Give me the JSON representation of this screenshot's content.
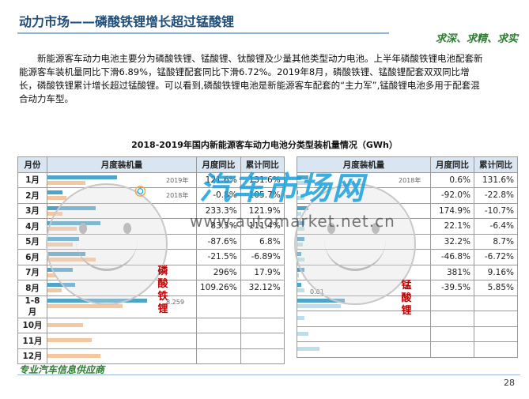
{
  "header": {
    "title": "动力市场——磷酸铁锂增长超过锰酸锂",
    "slogan": "求深、求精、求实"
  },
  "intro": "新能源客车动力电池主要分为磷酸铁锂、锰酸锂、钛酸锂及少量其他类型动力电池。上半年磷酸铁锂电池配套新能源客车装机量同比下滑6.89%，锰酸锂配套同比下滑6.72%。2019年8月，磷酸铁锂、锰酸锂配套双双同比增长，磷酸铁锂累计增长超过锰酸锂。可以看到,磷酸铁锂电池是新能源客车配套的“主力军”,锰酸锂电池多用于配套混合动力车型。",
  "table": {
    "title": "2018-2019年国内新能源客车动力电池分类型装机量情况（GWh）",
    "headers": [
      "月份",
      "月度装机量",
      "月度同比",
      "累计同比",
      "月度装机量",
      "月度同比",
      "累计同比"
    ],
    "months": [
      "1月",
      "2月",
      "3月",
      "4月",
      "5月",
      "6月",
      "7月",
      "8月",
      "1-8月",
      "10月",
      "11月",
      "12月"
    ],
    "lfp_monthly_yoy": [
      "121.6%",
      "-0.8%",
      "233.3%",
      "83.3%",
      "-87.6%",
      "-21.5%",
      "296%",
      "109.26%",
      "",
      "",
      "",
      ""
    ],
    "lfp_cum_yoy": [
      "131.6%",
      "105.7%",
      "121.9%",
      "111.4%",
      "6.8%",
      "-6.89%",
      "17.9%",
      "32.12%",
      "",
      "",
      "",
      ""
    ],
    "lmo_monthly_yoy": [
      "0.6%",
      "-92.0%",
      "174.9%",
      "22.1%",
      "32.2%",
      "-46.8%",
      "381%",
      "-39.5%",
      "",
      "",
      "",
      ""
    ],
    "lmo_cum_yoy": [
      "131.6%",
      "-22.8%",
      "-10.7%",
      "-6.4%",
      "8.7%",
      "-6.72%",
      "9.16%",
      "5.85%",
      "",
      "",
      "",
      ""
    ],
    "lfp_label": "磷酸铁锂",
    "lmo_label": "锰酸锂",
    "legend_2019": "2019年",
    "legend_2018": "2018年",
    "lfp_total_label": "8.259",
    "lmo_small_label": "0.01"
  },
  "chart_data": [
    {
      "type": "bar",
      "title": "磷酸铁锂 月度装机量",
      "categories": [
        "1月",
        "2月",
        "3月",
        "4月",
        "5月",
        "6月",
        "7月",
        "8月",
        "1-8月",
        "10月",
        "11月",
        "12月"
      ],
      "series": [
        {
          "name": "2019年",
          "values": [
            0.55,
            0.12,
            0.38,
            0.42,
            0.25,
            0.3,
            0.2,
            0.22,
            8.259,
            null,
            null,
            null
          ]
        },
        {
          "name": "2018年",
          "values": [
            0.3,
            0.15,
            0.12,
            0.23,
            0.2,
            0.38,
            0.06,
            0.11,
            6.25,
            0.28,
            0.35,
            0.42
          ]
        }
      ]
    },
    {
      "type": "bar",
      "title": "锰酸锂 月度装机量",
      "categories": [
        "1月",
        "2月",
        "3月",
        "4月",
        "5月",
        "6月",
        "7月",
        "8月",
        "1-8月",
        "10月",
        "11月",
        "12月"
      ],
      "series": [
        {
          "name": "2019年",
          "values": [
            0.03,
            0.002,
            0.03,
            0.02,
            0.02,
            0.01,
            0.02,
            0.01,
            0.13,
            null,
            null,
            null
          ]
        },
        {
          "name": "2018年",
          "values": [
            0.03,
            0.02,
            0.01,
            0.02,
            0.015,
            0.02,
            0.004,
            0.02,
            0.12,
            0.02,
            0.03,
            0.06
          ]
        }
      ]
    }
  ],
  "watermark": {
    "brand": "汽车市场网",
    "url": "www.automarket.net.cn"
  },
  "footer": {
    "text": "专业汽车信息供应商",
    "page": "28"
  }
}
